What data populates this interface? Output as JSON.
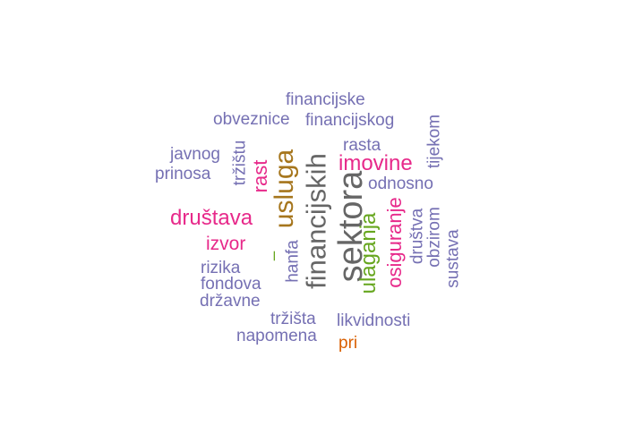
{
  "words": {
    "financijske": "financijske",
    "obveznice": "obveznice",
    "financijskog": "financijskog",
    "javnog": "javnog",
    "prinosa": "prinosa",
    "trzistu": "tržištu",
    "rast": "rast",
    "usluga": "usluga",
    "financijskih": "financijskih",
    "sektora": "sektora",
    "rasta": "rasta",
    "imovine": "imovine",
    "tijekom": "tijekom",
    "odnosno": "odnosno",
    "drustava": "društava",
    "ulaganja": "ulaganja",
    "osiguranje": "osiguranje",
    "drustva": "društva",
    "obzirom": "obzirom",
    "sustava": "sustava",
    "izvor": "izvor",
    "dash": "–",
    "hanfa": "hanfa",
    "rizika": "rizika",
    "fondova": "fondova",
    "drzavne": "državne",
    "trzista": "tržišta",
    "likvidnosti": "likvidnosti",
    "napomena": "napomena",
    "pri": "pri"
  },
  "colors": {
    "purple": "#7570b3",
    "pink": "#e7298a",
    "gray": "#666666",
    "olive": "#a6761d",
    "green": "#66a61e",
    "orange": "#d95f02"
  }
}
